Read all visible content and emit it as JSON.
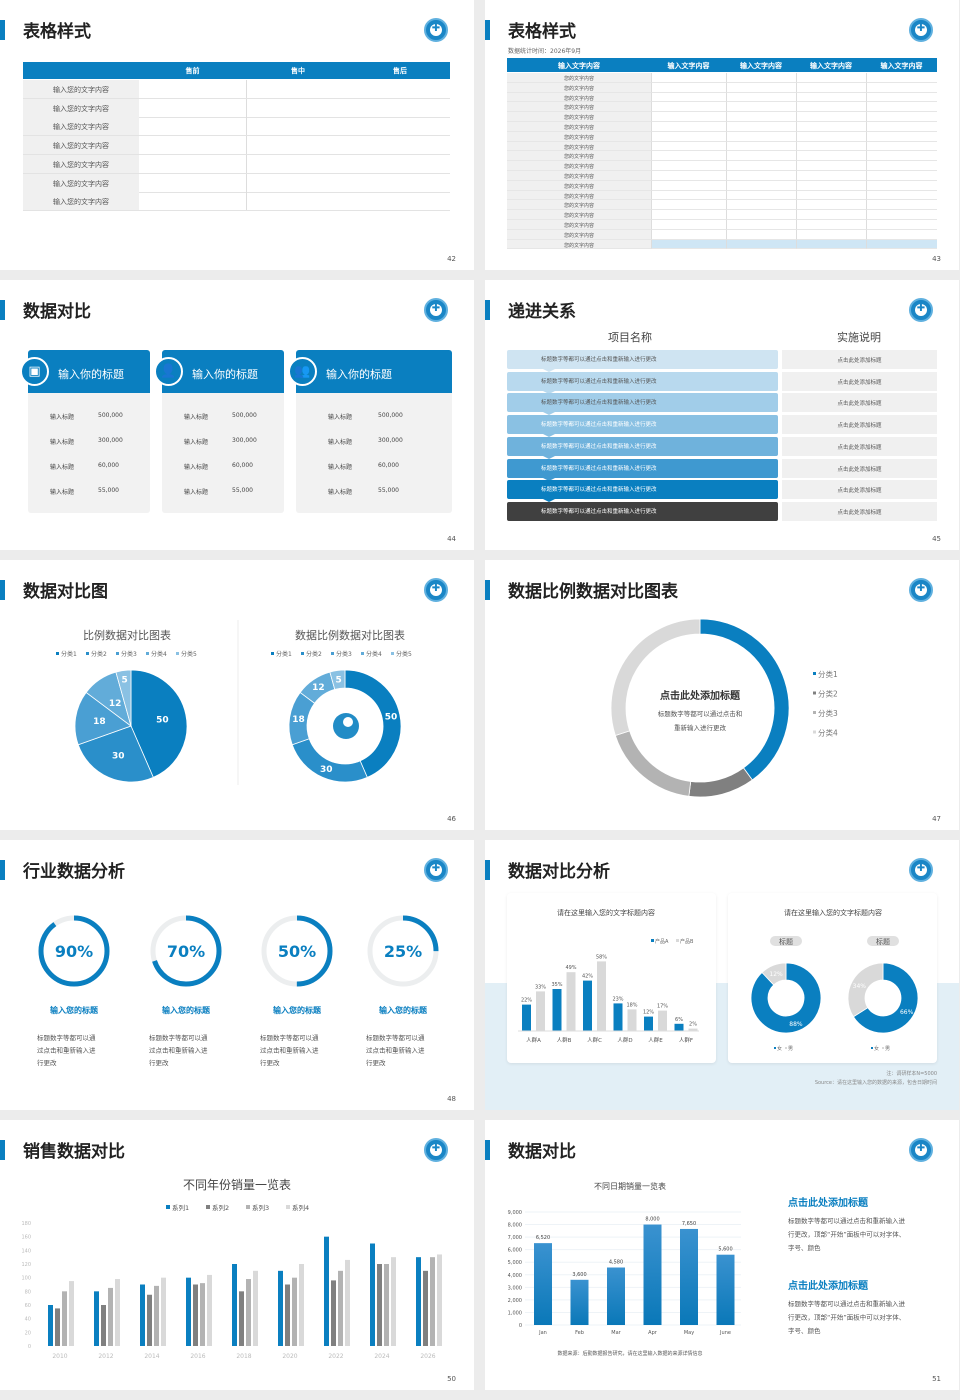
{
  "slides": [
    {
      "page": "42",
      "title": "表格样式",
      "table": {
        "headers": [
          "",
          "售前",
          "售中",
          "售后"
        ],
        "rows": [
          "输入您的文字内容",
          "输入您的文字内容",
          "输入您的文字内容",
          "输入您的文字内容",
          "输入您的文字内容",
          "输入您的文字内容",
          "输入您的文字内容"
        ]
      }
    },
    {
      "page": "43",
      "title": "表格样式",
      "subtitle": "数据统计时间：2026年9月",
      "table": {
        "headers": [
          "输入文字内容",
          "输入文字内容",
          "输入文字内容",
          "输入文字内容",
          "输入文字内容"
        ],
        "rows": [
          "您的文字内容",
          "您的文字内容",
          "您的文字内容",
          "您的文字内容",
          "您的文字内容",
          "您的文字内容",
          "您的文字内容",
          "您的文字内容",
          "您的文字内容",
          "您的文字内容",
          "您的文字内容",
          "您的文字内容",
          "您的文字内容",
          "您的文字内容",
          "您的文字内容",
          "您的文字内容",
          "您的文字内容",
          "您的文字内容"
        ]
      }
    },
    {
      "page": "44",
      "title": "数据对比",
      "cards": [
        {
          "icon": "mobile-user-icon",
          "title": "输入你的标题",
          "rows": [
            [
              "输入标题",
              "500,000"
            ],
            [
              "输入标题",
              "300,000"
            ],
            [
              "输入标题",
              "60,000"
            ],
            [
              "输入标题",
              "55,000"
            ]
          ]
        },
        {
          "icon": "user-add-icon",
          "title": "输入你的标题",
          "rows": [
            [
              "输入标题",
              "500,000"
            ],
            [
              "输入标题",
              "300,000"
            ],
            [
              "输入标题",
              "60,000"
            ],
            [
              "输入标题",
              "55,000"
            ]
          ]
        },
        {
          "icon": "users-group-icon",
          "title": "输入你的标题",
          "rows": [
            [
              "输入标题",
              "500,000"
            ],
            [
              "输入标题",
              "300,000"
            ],
            [
              "输入标题",
              "60,000"
            ],
            [
              "输入标题",
              "55,000"
            ]
          ]
        }
      ]
    },
    {
      "page": "45",
      "title": "递进关系",
      "col1": "项目名称",
      "col2": "实施说明",
      "rows": [
        [
          "标题数字等都可以通过点击和重新输入进行更改",
          "点击此处添加标题"
        ],
        [
          "标题数字等都可以通过点击和重新输入进行更改",
          "点击此处添加标题"
        ],
        [
          "标题数字等都可以通过点击和重新输入进行更改",
          "点击此处添加标题"
        ],
        [
          "标题数字等都可以通过点击和重新输入进行更改",
          "点击此处添加标题"
        ],
        [
          "标题数字等都可以通过点击和重新输入进行更改",
          "点击此处添加标题"
        ],
        [
          "标题数字等都可以通过点击和重新输入进行更改",
          "点击此处添加标题"
        ],
        [
          "标题数字等都可以通过点击和重新输入进行更改",
          "点击此处添加标题"
        ],
        [
          "标题数字等都可以通过点击和重新输入进行更改",
          "点击此处添加标题"
        ]
      ],
      "colors": [
        "#cfe4f2",
        "#b8d9ee",
        "#a1cde9",
        "#8ac1e3",
        "#6fb2dc",
        "#3f99d0",
        "#0a7fc0",
        "#404040"
      ]
    },
    {
      "page": "46",
      "title": "数据对比图",
      "center_icon": "presenter-icon"
    },
    {
      "page": "47",
      "title": "数据比例数据对比图表",
      "center_title": "点击此处添加标题",
      "center_text": [
        "标题数字等都可以通过点击和",
        "重新输入进行更改"
      ]
    },
    {
      "page": "48",
      "title": "行业数据分析",
      "items": [
        {
          "value": "90%",
          "progress": 0.9,
          "label": "输入您的标题",
          "desc": [
            "标题数字等都可以通",
            "过点击和重新输入进",
            "行更改"
          ]
        },
        {
          "value": "70%",
          "progress": 0.7,
          "label": "输入您的标题",
          "desc": [
            "标题数字等都可以通",
            "过点击和重新输入进",
            "行更改"
          ]
        },
        {
          "value": "50%",
          "progress": 0.5,
          "label": "输入您的标题",
          "desc": [
            "标题数字等都可以通",
            "过点击和重新输入进",
            "行更改"
          ]
        },
        {
          "value": "25%",
          "progress": 0.25,
          "label": "输入您的标题",
          "desc": [
            "标题数字等都可以通",
            "过点击和重新输入进",
            "行更改"
          ]
        }
      ]
    },
    {
      "page": "49",
      "title": "数据对比分析",
      "note": "注：调研样本N=5000",
      "source": "Source：请在这里输入您的数据的来源，包含日期时间",
      "donut_titles": [
        "标题",
        "标题"
      ]
    },
    {
      "page": "50",
      "title": "销售数据对比"
    },
    {
      "page": "51",
      "title": "数据对比",
      "source": "数据来源：后勤数据报告研究，请在这里输入数据的来源详情信息",
      "blocks": [
        {
          "title": "点击此处添加标题",
          "text": [
            "标题数字等都可以通过点击和重新输入进",
            "行更改，顶部“开始”面板中可以对字体、",
            "字号、颜色"
          ]
        },
        {
          "title": "点击此处添加标题",
          "text": [
            "标题数字等都可以通过点击和重新输入进",
            "行更改，顶部“开始”面板中可以对字体、",
            "字号、颜色"
          ]
        }
      ]
    }
  ],
  "colors": {
    "accent": "#0a7fc0",
    "gray_dark": "#808080",
    "gray_mid": "#b3b3b3",
    "gray_light": "#d9d9d9"
  },
  "chart_data": [
    {
      "type": "pie",
      "title": "比例数据对比图表",
      "categories": [
        "分类1",
        "分类2",
        "分类3",
        "分类4",
        "分类5"
      ],
      "values": [
        50,
        30,
        18,
        12,
        5
      ],
      "legend": "top"
    },
    {
      "type": "pie",
      "donut": true,
      "title": "数据比例数据对比图表",
      "categories": [
        "分类1",
        "分类2",
        "分类3",
        "分类4",
        "分类5"
      ],
      "values": [
        50,
        30,
        18,
        12,
        5
      ],
      "legend": "top"
    },
    {
      "type": "pie",
      "donut": true,
      "categories": [
        "分类1",
        "分类2",
        "分类3",
        "分类4"
      ],
      "values": [
        40,
        12,
        18,
        30
      ],
      "legend": "right"
    },
    {
      "type": "bar",
      "title": "请在这里输入您的文字标题内容",
      "categories": [
        "人群A",
        "人群B",
        "人群C",
        "人群D",
        "人群E",
        "人群F"
      ],
      "series": [
        {
          "name": "产品A",
          "values": [
            22,
            35,
            42,
            23,
            12,
            6
          ]
        },
        {
          "name": "产品B",
          "values": [
            33,
            49,
            58,
            18,
            17,
            2
          ]
        }
      ],
      "value_labels": [
        "22%",
        "35%",
        "42%",
        "23%",
        "12%",
        "6%",
        "33%",
        "49%",
        "58%",
        "18%",
        "17%",
        "2%"
      ],
      "legend": "top-right"
    },
    {
      "type": "pie",
      "donut": true,
      "title": "请在这里输入您的文字标题内容",
      "charts": [
        {
          "title": "标题",
          "categories": [
            "女",
            "男"
          ],
          "values": [
            88,
            12
          ],
          "labels": [
            "88%",
            "12%"
          ]
        },
        {
          "title": "标题",
          "categories": [
            "女",
            "男"
          ],
          "values": [
            66,
            34
          ],
          "labels": [
            "66%",
            "34%"
          ]
        }
      ]
    },
    {
      "type": "bar",
      "title": "不同年份销量一览表",
      "categories": [
        "2010",
        "2012",
        "2014",
        "2016",
        "2018",
        "2020",
        "2022",
        "2024",
        "2026"
      ],
      "series": [
        {
          "name": "系列1",
          "values": [
            60,
            80,
            90,
            100,
            120,
            110,
            160,
            150,
            130
          ]
        },
        {
          "name": "系列2",
          "values": [
            55,
            60,
            75,
            90,
            80,
            90,
            96,
            120,
            110
          ]
        },
        {
          "name": "系列3",
          "values": [
            80,
            85,
            88,
            92,
            98,
            100,
            110,
            120,
            130
          ]
        },
        {
          "name": "系列4",
          "values": [
            95,
            98,
            100,
            104,
            110,
            120,
            126,
            130,
            134
          ]
        }
      ],
      "ylim": [
        0,
        180
      ],
      "yticks": [
        "0",
        "20",
        "40",
        "60",
        "80",
        "100",
        "120",
        "140",
        "160",
        "180"
      ],
      "legend": "top"
    },
    {
      "type": "bar",
      "title": "不同日期销量一览表",
      "categories": [
        "Jan",
        "Feb",
        "Mar",
        "Apr",
        "May",
        "June"
      ],
      "values": [
        6520,
        3600,
        4580,
        8000,
        7650,
        5600
      ],
      "value_labels": [
        "6,520",
        "3,600",
        "4,580",
        "8,000",
        "7,650",
        "5,600"
      ],
      "ylim": [
        0,
        9000
      ],
      "yticks": [
        "0",
        "1,000",
        "2,000",
        "3,000",
        "4,000",
        "5,000",
        "6,000",
        "7,000",
        "8,000",
        "9,000"
      ],
      "grid": true
    }
  ]
}
